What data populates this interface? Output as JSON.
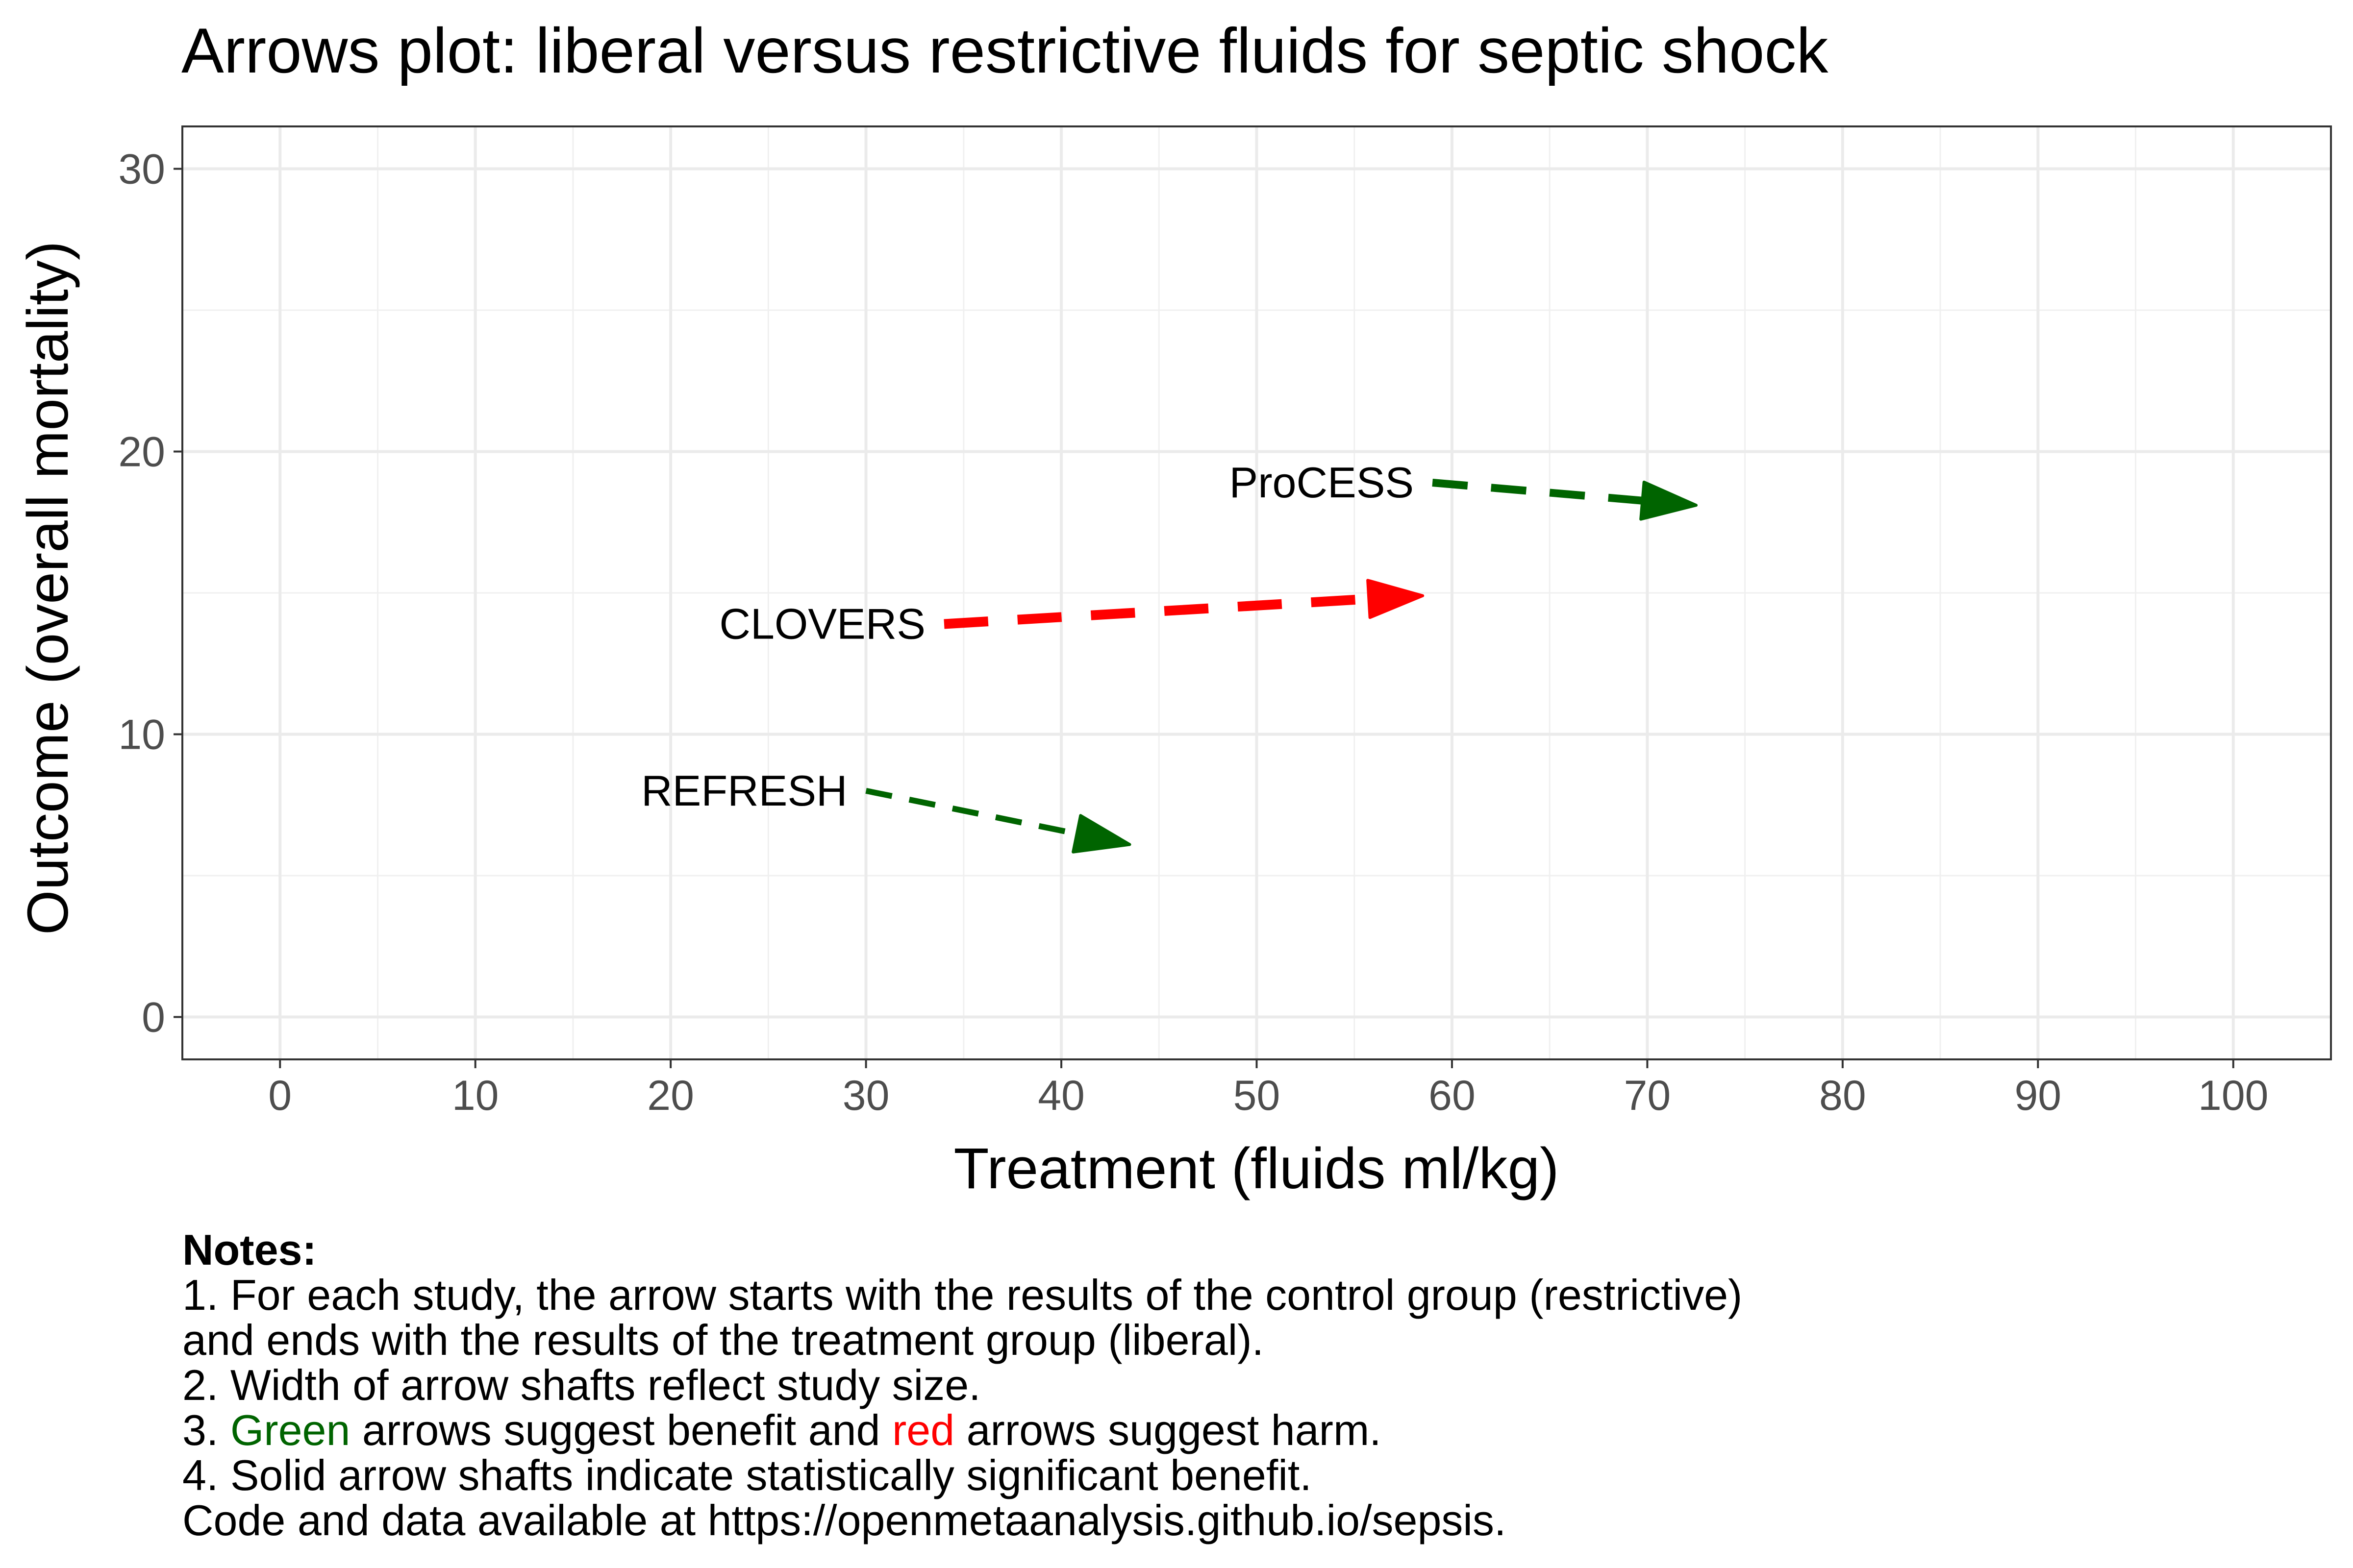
{
  "chart_data": {
    "type": "arrows",
    "title": "Arrows plot: liberal versus restrictive fluids for septic shock",
    "xlabel": "Treatment (fluids ml/kg)",
    "ylabel": "Outcome (overall mortality)",
    "xlim": [
      -5,
      105
    ],
    "ylim": [
      -1.5,
      31.5
    ],
    "x_ticks": [
      0,
      10,
      20,
      30,
      40,
      50,
      60,
      70,
      80,
      90,
      100
    ],
    "y_ticks": [
      0,
      10,
      20,
      30
    ],
    "grid": true,
    "arrows": [
      {
        "name": "REFRESH",
        "x_start": 30,
        "y_start": 8,
        "x_end": 43.5,
        "y_end": 6.1,
        "color": "#006400",
        "shaft_weight": 1,
        "dashed": true
      },
      {
        "name": "CLOVERS",
        "x_start": 34,
        "y_start": 13.9,
        "x_end": 58.5,
        "y_end": 14.9,
        "color": "#ff0000",
        "shaft_weight": 3,
        "dashed": true
      },
      {
        "name": "ProCESS",
        "x_start": 59,
        "y_start": 18.9,
        "x_end": 72.5,
        "y_end": 18.1,
        "color": "#006400",
        "shaft_weight": 2,
        "dashed": true
      }
    ]
  },
  "notes": {
    "heading": "Notes:",
    "line1": "1. For each study, the arrow starts with the results of the control group (restrictive)",
    "line2": "and ends with the results of the treatment group (liberal).",
    "line3": "2. Width of arrow shafts reflect study size.",
    "line4_prefix": "3. ",
    "line4_green": "Green",
    "line4_mid": " arrows suggest benefit and ",
    "line4_red": "red",
    "line4_suffix": " arrows suggest harm.",
    "line5": "4. Solid arrow shafts indicate statistically significant benefit.",
    "line6": "Code and data available at https://openmetaanalysis.github.io/sepsis."
  },
  "colors": {
    "green": "#006400",
    "red": "#ff0000"
  }
}
